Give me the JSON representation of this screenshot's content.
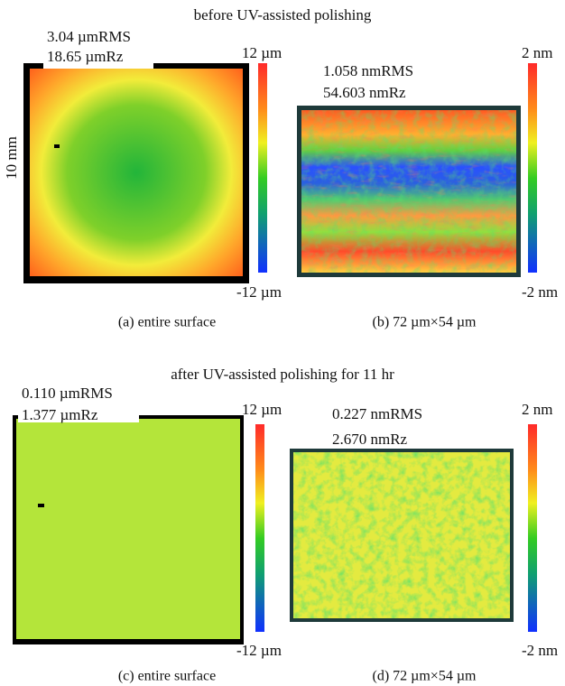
{
  "sections": [
    {
      "title": "before UV-assisted polishing",
      "panels": [
        {
          "stats": [
            "3.04 µmRMS",
            "18.65 µmRz"
          ],
          "axis_label": "10 mm",
          "colorbar": {
            "max": "12 µm",
            "min": "-12 µm"
          },
          "caption": "(a) entire surface"
        },
        {
          "stats": [
            "1.058 nmRMS",
            "54.603 nmRz"
          ],
          "colorbar": {
            "max": "2 nm",
            "min": "-2 nm"
          },
          "caption": "(b) 72 µm×54 µm"
        }
      ]
    },
    {
      "title": "after UV-assisted polishing for 11 hr",
      "panels": [
        {
          "stats": [
            "0.110 µmRMS",
            "1.377 µmRz"
          ],
          "colorbar": {
            "max": "12 µm",
            "min": "-12 µm"
          },
          "caption": "(c) entire surface"
        },
        {
          "stats": [
            "0.227 nmRMS",
            "2.670 nmRz"
          ],
          "colorbar": {
            "max": "2 nm",
            "min": "-2 nm"
          },
          "caption": "(d) 72 µm×54 µm"
        }
      ]
    }
  ]
}
